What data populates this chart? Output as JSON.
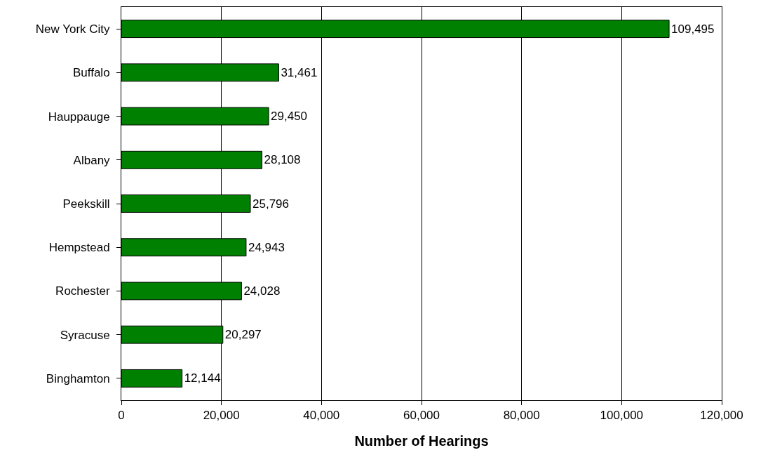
{
  "chart_data": {
    "type": "bar",
    "orientation": "horizontal",
    "xlabel": "Number of Hearings",
    "categories": [
      "New York City",
      "Buffalo",
      "Hauppauge",
      "Albany",
      "Peekskill",
      "Hempstead",
      "Rochester",
      "Syracuse",
      "Binghamton"
    ],
    "values": [
      109495,
      31461,
      29450,
      28108,
      25796,
      24943,
      24028,
      20297,
      12144
    ],
    "value_labels": [
      "109,495",
      "31,461",
      "29,450",
      "28,108",
      "25,796",
      "24,943",
      "24,028",
      "20,297",
      "12,144"
    ],
    "color": "#008000",
    "xlim": [
      0,
      120000
    ],
    "xticks": [
      {
        "value": 0,
        "label": "0"
      },
      {
        "value": 20000,
        "label": "20,000"
      },
      {
        "value": 40000,
        "label": "40,000"
      },
      {
        "value": 60000,
        "label": "60,000"
      },
      {
        "value": 80000,
        "label": "80,000"
      },
      {
        "value": 100000,
        "label": "100,000"
      },
      {
        "value": 120000,
        "label": "120,000"
      }
    ],
    "grid": "x",
    "legend": false
  }
}
